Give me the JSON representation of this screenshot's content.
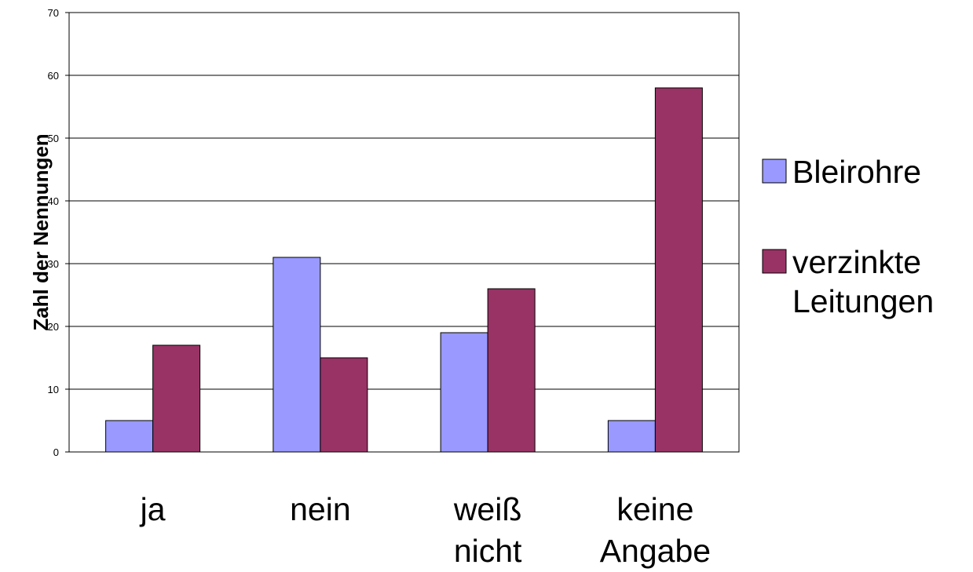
{
  "chart_data": {
    "type": "bar",
    "categories": [
      [
        "ja"
      ],
      [
        "nein"
      ],
      [
        "weiß",
        "nicht"
      ],
      [
        "keine",
        "Angabe"
      ]
    ],
    "series": [
      {
        "name": "Bleirohre",
        "values": [
          5,
          31,
          19,
          5
        ],
        "color": "#9999FF"
      },
      {
        "name": [
          "verzinkte",
          "Leitungen"
        ],
        "values": [
          17,
          15,
          26,
          58
        ],
        "color": "#993366"
      }
    ],
    "ylabel": "Zahl der Nennungen",
    "xlabel": "",
    "ylim": [
      0,
      70
    ],
    "yticks": [
      0,
      10,
      20,
      30,
      40,
      50,
      60,
      70
    ],
    "grid": true,
    "legend": "right"
  }
}
